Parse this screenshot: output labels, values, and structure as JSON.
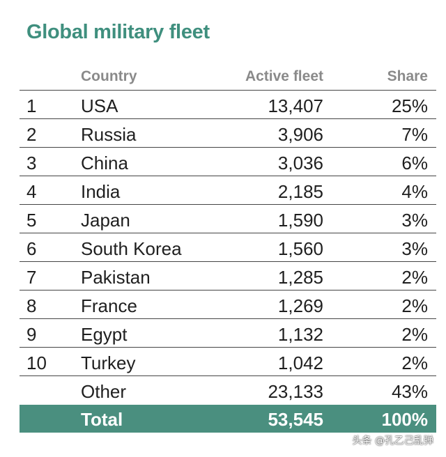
{
  "title": "Global military fleet",
  "columns": {
    "country": "Country",
    "fleet": "Active fleet",
    "share": "Share"
  },
  "rows": [
    {
      "rank": "1",
      "country": "USA",
      "fleet": "13,407",
      "share": "25%"
    },
    {
      "rank": "2",
      "country": "Russia",
      "fleet": "3,906",
      "share": "7%"
    },
    {
      "rank": "3",
      "country": "China",
      "fleet": "3,036",
      "share": "6%"
    },
    {
      "rank": "4",
      "country": "India",
      "fleet": "2,185",
      "share": "4%"
    },
    {
      "rank": "5",
      "country": "Japan",
      "fleet": "1,590",
      "share": "3%"
    },
    {
      "rank": "6",
      "country": "South Korea",
      "fleet": "1,560",
      "share": "3%"
    },
    {
      "rank": "7",
      "country": "Pakistan",
      "fleet": "1,285",
      "share": "2%"
    },
    {
      "rank": "8",
      "country": "France",
      "fleet": "1,269",
      "share": "2%"
    },
    {
      "rank": "9",
      "country": "Egypt",
      "fleet": "1,132",
      "share": "2%"
    },
    {
      "rank": "10",
      "country": "Turkey",
      "fleet": "1,042",
      "share": "2%"
    }
  ],
  "other": {
    "country": "Other",
    "fleet": "23,133",
    "share": "43%"
  },
  "total": {
    "label": "Total",
    "fleet": "53,545",
    "share": "100%"
  },
  "watermark": "头条 @孔乙己乱弹",
  "colors": {
    "accent": "#3f8f7e",
    "total_bg": "#4a8f7f",
    "header_text": "#8a8a8a"
  }
}
